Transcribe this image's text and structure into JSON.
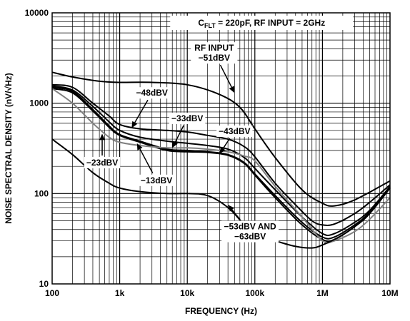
{
  "chart_data": {
    "type": "line",
    "title_main": "C",
    "title_sub": "FLT",
    "title_rest": " = 220pF, RF INPUT = 2GHz",
    "xlabel": "FREQUENCY (Hz)",
    "ylabel": "NOISE SPECTRAL DENSITY (nV/√Hz)",
    "xscale": "log",
    "yscale": "log",
    "xlim": [
      100,
      10000000
    ],
    "ylim": [
      10,
      10000
    ],
    "x_ticks": [
      {
        "value": 100,
        "label": "100"
      },
      {
        "value": 1000,
        "label": "1k"
      },
      {
        "value": 10000,
        "label": "10k"
      },
      {
        "value": 100000,
        "label": "100k"
      },
      {
        "value": 1000000,
        "label": "1M"
      },
      {
        "value": 10000000,
        "label": "10M"
      }
    ],
    "y_ticks": [
      {
        "value": 10,
        "label": "10"
      },
      {
        "value": 100,
        "label": "100"
      },
      {
        "value": 1000,
        "label": "1000"
      },
      {
        "value": 10000,
        "label": "10000"
      }
    ],
    "grid": true,
    "series": [
      {
        "color": "#000000",
        "points": [
          [
            100,
            2200
          ],
          [
            200,
            1950
          ],
          [
            500,
            1750
          ],
          [
            1000,
            1700
          ],
          [
            3000,
            1700
          ],
          [
            10000,
            1600
          ],
          [
            30000,
            1250
          ],
          [
            60000,
            900
          ],
          [
            100000,
            520
          ],
          [
            200000,
            250
          ],
          [
            500000,
            110
          ],
          [
            1000000,
            78
          ],
          [
            1500000,
            73
          ],
          [
            3000000,
            85
          ],
          [
            10000000,
            138
          ]
        ]
      },
      {
        "color": "#000000",
        "points": [
          [
            100,
            1600
          ],
          [
            200,
            1500
          ],
          [
            400,
            1000
          ],
          [
            700,
            720
          ],
          [
            1000,
            580
          ],
          [
            2000,
            520
          ],
          [
            5000,
            500
          ],
          [
            10000,
            480
          ],
          [
            20000,
            440
          ],
          [
            40000,
            400
          ],
          [
            70000,
            330
          ],
          [
            100000,
            255
          ],
          [
            200000,
            130
          ],
          [
            400000,
            75
          ],
          [
            700000,
            50
          ],
          [
            1000000,
            45
          ],
          [
            1500000,
            46
          ],
          [
            3000000,
            60
          ],
          [
            5000000,
            80
          ],
          [
            10000000,
            125
          ]
        ]
      },
      {
        "color": "#000000",
        "points": [
          [
            100,
            1550
          ],
          [
            200,
            1400
          ],
          [
            400,
            920
          ],
          [
            700,
            620
          ],
          [
            1000,
            500
          ],
          [
            2000,
            420
          ],
          [
            5000,
            380
          ],
          [
            10000,
            360
          ],
          [
            20000,
            340
          ],
          [
            40000,
            310
          ],
          [
            70000,
            250
          ],
          [
            100000,
            190
          ],
          [
            200000,
            110
          ],
          [
            500000,
            55
          ],
          [
            1000000,
            36
          ],
          [
            1500000,
            36
          ],
          [
            3000000,
            48
          ],
          [
            5000000,
            65
          ],
          [
            10000000,
            120
          ]
        ]
      },
      {
        "color": "#000000",
        "points": [
          [
            100,
            1500
          ],
          [
            200,
            1350
          ],
          [
            400,
            850
          ],
          [
            700,
            560
          ],
          [
            1000,
            450
          ],
          [
            2000,
            380
          ],
          [
            5000,
            310
          ],
          [
            10000,
            300
          ],
          [
            20000,
            290
          ],
          [
            40000,
            270
          ],
          [
            70000,
            220
          ],
          [
            100000,
            165
          ],
          [
            200000,
            95
          ],
          [
            500000,
            48
          ],
          [
            1000000,
            33
          ],
          [
            1500000,
            33
          ],
          [
            3000000,
            45
          ],
          [
            5000000,
            62
          ],
          [
            10000000,
            118
          ]
        ]
      },
      {
        "color": "#000000",
        "points": [
          [
            100,
            1450
          ],
          [
            200,
            1300
          ],
          [
            400,
            820
          ],
          [
            700,
            540
          ],
          [
            1000,
            440
          ],
          [
            2000,
            370
          ],
          [
            5000,
            300
          ],
          [
            10000,
            290
          ],
          [
            20000,
            285
          ],
          [
            40000,
            265
          ],
          [
            70000,
            215
          ],
          [
            100000,
            160
          ],
          [
            200000,
            90
          ],
          [
            500000,
            45
          ],
          [
            1000000,
            31
          ],
          [
            1500000,
            31
          ],
          [
            3000000,
            43
          ],
          [
            5000000,
            60
          ],
          [
            10000000,
            115
          ]
        ]
      },
      {
        "color": "#808080",
        "points": [
          [
            100,
            1450
          ],
          [
            200,
            1000
          ],
          [
            400,
            600
          ],
          [
            700,
            420
          ],
          [
            1000,
            370
          ],
          [
            2000,
            340
          ],
          [
            5000,
            320
          ],
          [
            10000,
            320
          ],
          [
            20000,
            310
          ],
          [
            40000,
            290
          ],
          [
            70000,
            260
          ],
          [
            100000,
            230
          ],
          [
            200000,
            120
          ],
          [
            500000,
            55
          ],
          [
            1000000,
            30
          ],
          [
            1500000,
            30
          ],
          [
            3000000,
            38
          ],
          [
            5000000,
            52
          ],
          [
            10000000,
            90
          ]
        ]
      },
      {
        "color": "#000000",
        "points": [
          [
            100,
            400
          ],
          [
            200,
            270
          ],
          [
            400,
            170
          ],
          [
            700,
            130
          ],
          [
            1000,
            115
          ],
          [
            2000,
            105
          ],
          [
            5000,
            100
          ],
          [
            10000,
            100
          ],
          [
            20000,
            95
          ],
          [
            40000,
            70
          ],
          [
            70000,
            45
          ],
          [
            100000,
            35
          ],
          [
            200000,
            30
          ],
          [
            400000,
            26
          ],
          [
            700000,
            25
          ],
          [
            1000000,
            27
          ],
          [
            2000000,
            35
          ],
          [
            4000000,
            52
          ],
          [
            10000000,
            115
          ]
        ]
      }
    ],
    "annotations": [
      {
        "lines": [
          "RF INPUT",
          "−51dBV"
        ],
        "at": [
          25000,
          3600
        ],
        "to": [
          50000,
          1300
        ]
      },
      {
        "lines": [
          "−48dBV"
        ],
        "at": [
          3000,
          1300
        ],
        "to": [
          1500,
          530
        ]
      },
      {
        "lines": [
          "−33dBV"
        ],
        "at": [
          10000,
          680
        ],
        "to": [
          6000,
          320
        ]
      },
      {
        "lines": [
          "−43dBV"
        ],
        "at": [
          50000,
          490
        ],
        "to": [
          30000,
          275
        ]
      },
      {
        "lines": [
          "−23dBV"
        ],
        "at": [
          550,
          220
        ],
        "to": [
          550,
          460
        ]
      },
      {
        "lines": [
          "−13dBV"
        ],
        "at": [
          3500,
          140
        ],
        "to": [
          1800,
          360
        ]
      },
      {
        "lines": [
          "−53dBV AND",
          "−63dBV"
        ],
        "at": [
          85000,
          38
        ],
        "to": [
          40000,
          75
        ]
      }
    ]
  }
}
